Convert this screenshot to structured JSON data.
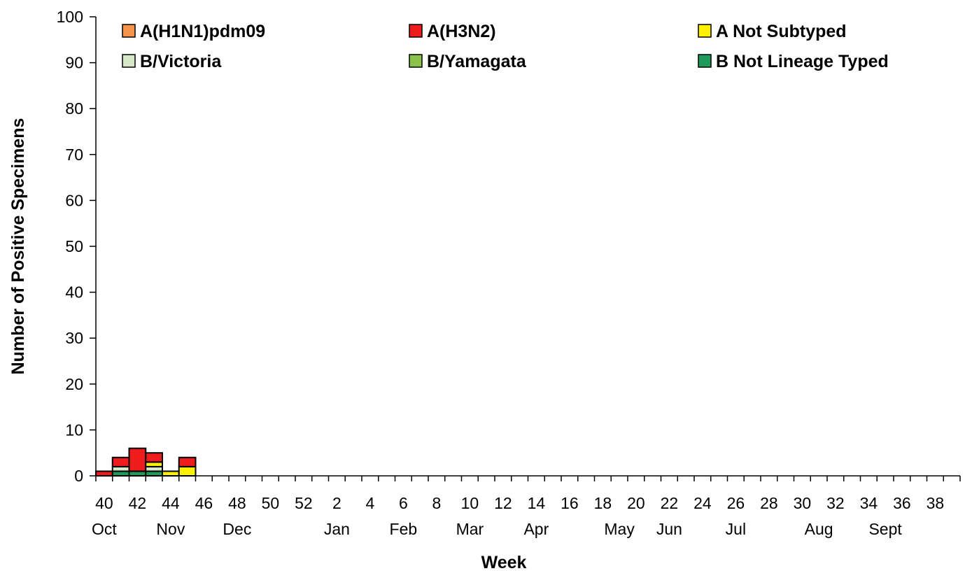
{
  "chart_data": {
    "type": "bar",
    "stacked": true,
    "xlabel": "Week",
    "ylabel": "Number of Positive Specimens",
    "ylim": [
      0,
      100
    ],
    "yticks": [
      0,
      10,
      20,
      30,
      40,
      50,
      60,
      70,
      80,
      90,
      100
    ],
    "grid": false,
    "legend_position": "top",
    "categories": [
      "40",
      "41",
      "42",
      "43",
      "44",
      "45",
      "46",
      "47",
      "48",
      "49",
      "50",
      "51",
      "52",
      "1",
      "2",
      "3",
      "4",
      "5",
      "6",
      "7",
      "8",
      "9",
      "10",
      "11",
      "12",
      "13",
      "14",
      "15",
      "16",
      "17",
      "18",
      "19",
      "20",
      "21",
      "22",
      "23",
      "24",
      "25",
      "26",
      "27",
      "28",
      "29",
      "30",
      "31",
      "32",
      "33",
      "34",
      "35",
      "36",
      "37",
      "38",
      "39"
    ],
    "week_tick_labels": [
      "40",
      "42",
      "44",
      "46",
      "48",
      "50",
      "52",
      "2",
      "4",
      "6",
      "8",
      "10",
      "12",
      "14",
      "16",
      "18",
      "20",
      "22",
      "24",
      "26",
      "28",
      "30",
      "32",
      "34",
      "36",
      "38"
    ],
    "month_labels": [
      {
        "label": "Oct",
        "week": "40"
      },
      {
        "label": "Nov",
        "week": "44"
      },
      {
        "label": "Dec",
        "week": "48"
      },
      {
        "label": "Jan",
        "week": "2"
      },
      {
        "label": "Feb",
        "week": "6"
      },
      {
        "label": "Mar",
        "week": "10"
      },
      {
        "label": "Apr",
        "week": "14"
      },
      {
        "label": "May",
        "week": "19"
      },
      {
        "label": "Jun",
        "week": "22"
      },
      {
        "label": "Jul",
        "week": "26"
      },
      {
        "label": "Aug",
        "week": "31"
      },
      {
        "label": "Sept",
        "week": "35"
      }
    ],
    "series": [
      {
        "name": "B Not Lineage Typed",
        "color": "#1E9B5A",
        "values": [
          0,
          1,
          1,
          1,
          0,
          0,
          0,
          0,
          0,
          0,
          0,
          0,
          0,
          0,
          0,
          0,
          0,
          0,
          0,
          0,
          0,
          0,
          0,
          0,
          0,
          0,
          0,
          0,
          0,
          0,
          0,
          0,
          0,
          0,
          0,
          0,
          0,
          0,
          0,
          0,
          0,
          0,
          0,
          0,
          0,
          0,
          0,
          0,
          0,
          0,
          0,
          0
        ]
      },
      {
        "name": "B/Yamagata",
        "color": "#8BC34A",
        "values": [
          0,
          0,
          0,
          0,
          0,
          0,
          0,
          0,
          0,
          0,
          0,
          0,
          0,
          0,
          0,
          0,
          0,
          0,
          0,
          0,
          0,
          0,
          0,
          0,
          0,
          0,
          0,
          0,
          0,
          0,
          0,
          0,
          0,
          0,
          0,
          0,
          0,
          0,
          0,
          0,
          0,
          0,
          0,
          0,
          0,
          0,
          0,
          0,
          0,
          0,
          0,
          0
        ]
      },
      {
        "name": "B/Victoria",
        "color": "#D7E8C8",
        "values": [
          0,
          1,
          0,
          1,
          0,
          0,
          0,
          0,
          0,
          0,
          0,
          0,
          0,
          0,
          0,
          0,
          0,
          0,
          0,
          0,
          0,
          0,
          0,
          0,
          0,
          0,
          0,
          0,
          0,
          0,
          0,
          0,
          0,
          0,
          0,
          0,
          0,
          0,
          0,
          0,
          0,
          0,
          0,
          0,
          0,
          0,
          0,
          0,
          0,
          0,
          0,
          0
        ]
      },
      {
        "name": "A Not Subtyped",
        "color": "#FFF200",
        "values": [
          0,
          0,
          0,
          1,
          1,
          2,
          0,
          0,
          0,
          0,
          0,
          0,
          0,
          0,
          0,
          0,
          0,
          0,
          0,
          0,
          0,
          0,
          0,
          0,
          0,
          0,
          0,
          0,
          0,
          0,
          0,
          0,
          0,
          0,
          0,
          0,
          0,
          0,
          0,
          0,
          0,
          0,
          0,
          0,
          0,
          0,
          0,
          0,
          0,
          0,
          0,
          0
        ]
      },
      {
        "name": "A(H3N2)",
        "color": "#EE1C1C",
        "values": [
          1,
          2,
          5,
          2,
          0,
          2,
          0,
          0,
          0,
          0,
          0,
          0,
          0,
          0,
          0,
          0,
          0,
          0,
          0,
          0,
          0,
          0,
          0,
          0,
          0,
          0,
          0,
          0,
          0,
          0,
          0,
          0,
          0,
          0,
          0,
          0,
          0,
          0,
          0,
          0,
          0,
          0,
          0,
          0,
          0,
          0,
          0,
          0,
          0,
          0,
          0,
          0
        ]
      },
      {
        "name": "A(H1N1)pdm09",
        "color": "#F4934A",
        "values": [
          0,
          0,
          0,
          0,
          0,
          0,
          0,
          0,
          0,
          0,
          0,
          0,
          0,
          0,
          0,
          0,
          0,
          0,
          0,
          0,
          0,
          0,
          0,
          0,
          0,
          0,
          0,
          0,
          0,
          0,
          0,
          0,
          0,
          0,
          0,
          0,
          0,
          0,
          0,
          0,
          0,
          0,
          0,
          0,
          0,
          0,
          0,
          0,
          0,
          0,
          0,
          0
        ]
      }
    ],
    "legend_order": [
      "A(H1N1)pdm09",
      "A(H3N2)",
      "A Not Subtyped",
      "B/Victoria",
      "B/Yamagata",
      "B Not Lineage Typed"
    ]
  }
}
